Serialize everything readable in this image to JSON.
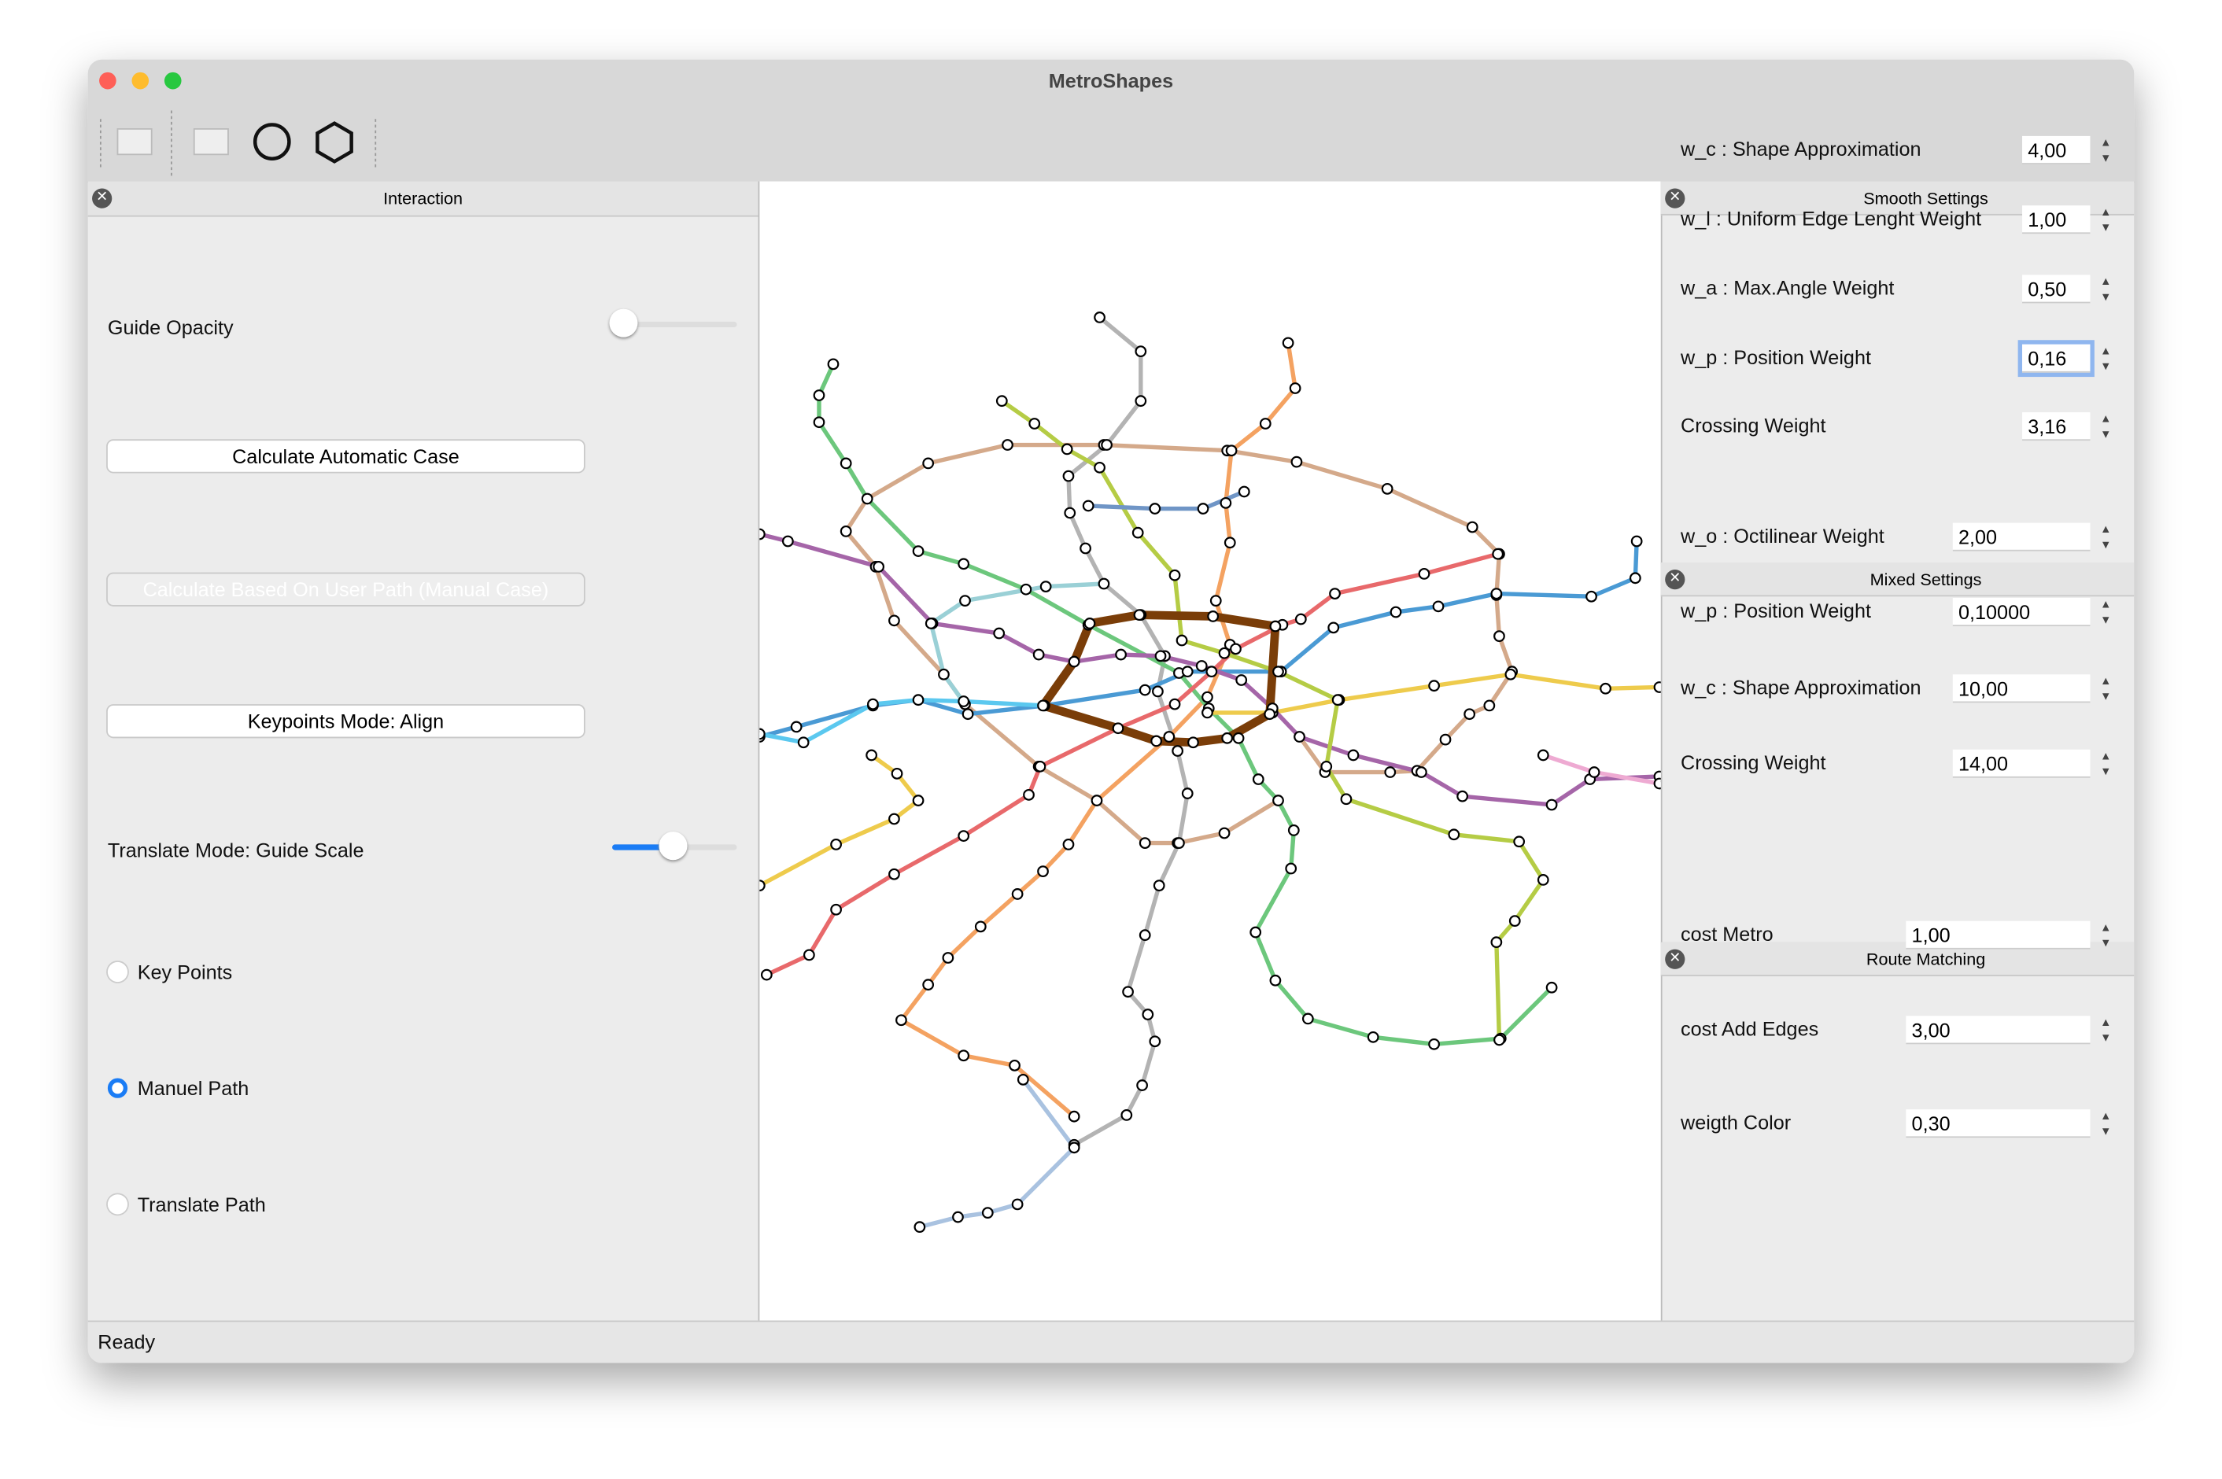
{
  "window": {
    "title": "MetroShapes"
  },
  "interaction": {
    "title": "Interaction",
    "guide_opacity": "Guide Opacity",
    "buttons": [
      "Calculate Automatic Case",
      "Calculate Based On User Path (Manual Case)",
      "Keypoints Mode: Align"
    ],
    "translate_mode": "Translate Mode: Guide Scale",
    "radios": [
      "Key Points",
      "Manuel Path",
      "Translate Path"
    ]
  },
  "smooth_settings": {
    "title": "Smooth Settings",
    "fields": [
      {
        "label": "w_c : Shape Approximation",
        "value": "4,00"
      },
      {
        "label": "w_l : Uniform Edge Lenght Weight",
        "value": "1,00"
      },
      {
        "label": "w_a : Max.Angle Weight",
        "value": "0,50"
      },
      {
        "label": "w_p : Position Weight",
        "value": "0,16"
      },
      {
        "label": "Crossing Weight",
        "value": "3,16"
      }
    ]
  },
  "mixed_settings": {
    "title": "Mixed Settings",
    "fields": [
      {
        "label": "w_o : Octilinear Weight",
        "value": "2,00"
      },
      {
        "label": "w_p : Position Weight",
        "value": "0,10000"
      },
      {
        "label": "w_c : Shape Approximation",
        "value": "10,00"
      },
      {
        "label": "Crossing Weight",
        "value": "14,00"
      }
    ]
  },
  "route_matching": {
    "title": "Route Matching",
    "fields": [
      {
        "label": "cost Metro",
        "value": "1,00"
      },
      {
        "label": "cost Add Edges",
        "value": "3,00"
      },
      {
        "label": "weigth Color",
        "value": "0,30"
      }
    ]
  },
  "status": "Ready"
}
